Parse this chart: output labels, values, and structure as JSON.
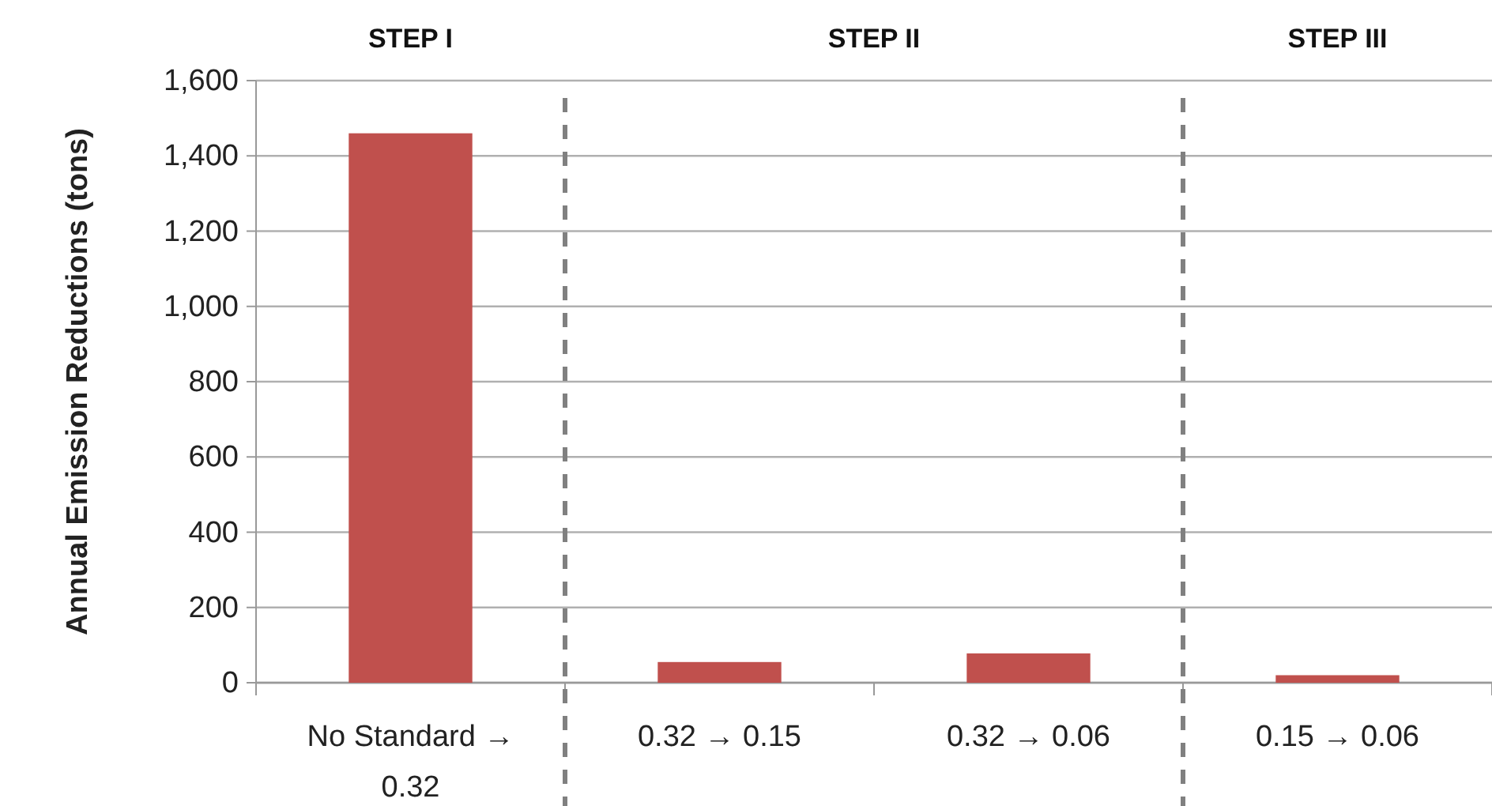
{
  "chart_data": {
    "type": "bar",
    "ylabel": "Annual Emission Reductions (tons)",
    "categories": [
      "No Standard → 0.32",
      "0.32 → 0.15",
      "0.32 → 0.06",
      "0.15 → 0.06"
    ],
    "values": [
      1460,
      55,
      78,
      20
    ],
    "color": "#c0504d",
    "ylim": [
      0,
      1600
    ],
    "yticks": [
      0,
      {
        "value": 200,
        "label": "200"
      },
      {
        "value": 400,
        "label": "400"
      },
      {
        "value": 600,
        "label": "600"
      },
      {
        "value": 800,
        "label": "800"
      },
      {
        "value": 1000,
        "label": "1,000"
      },
      {
        "value": 1200,
        "label": "1,200"
      },
      {
        "value": 1400,
        "label": "1,400"
      },
      {
        "value": 1600,
        "label": "1,600"
      }
    ],
    "grid": "y",
    "annotations": [
      "STEP I",
      "STEP II",
      "STEP III"
    ]
  }
}
